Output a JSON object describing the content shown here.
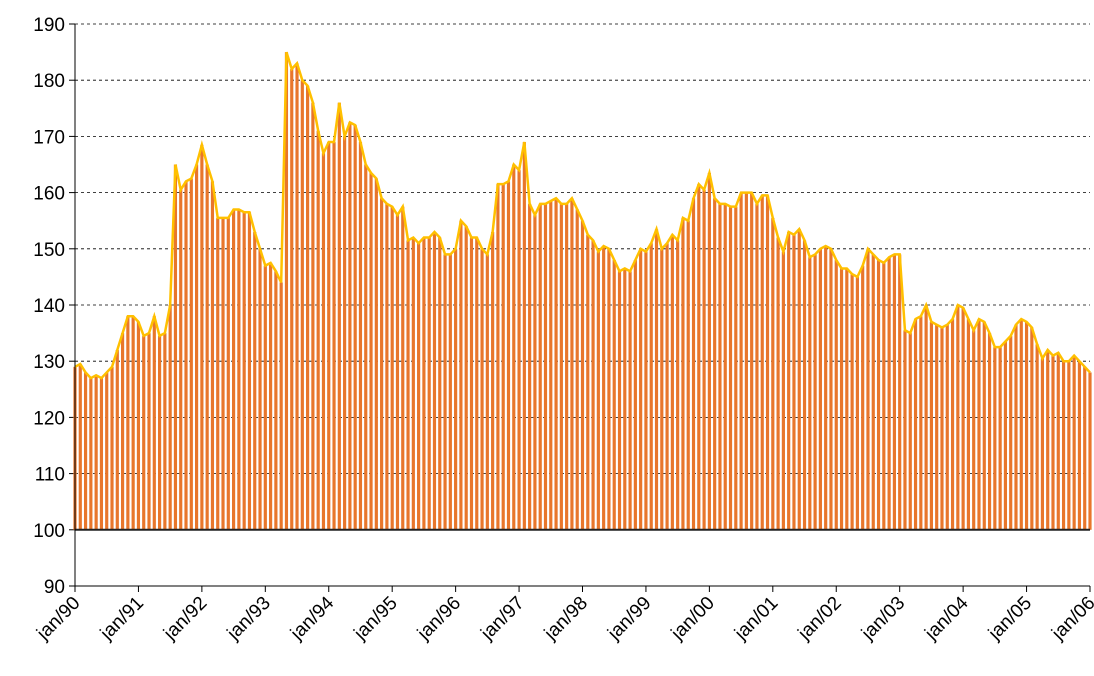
{
  "chart_data": {
    "type": "bar-line",
    "categories": [
      "jan/90",
      null,
      null,
      null,
      null,
      null,
      null,
      null,
      null,
      null,
      null,
      null,
      "jan/91",
      null,
      null,
      null,
      null,
      null,
      null,
      null,
      null,
      null,
      null,
      null,
      "jan/92",
      null,
      null,
      null,
      null,
      null,
      null,
      null,
      null,
      null,
      null,
      null,
      "jan/93",
      null,
      null,
      null,
      null,
      null,
      null,
      null,
      null,
      null,
      null,
      null,
      "jan/94",
      null,
      null,
      null,
      null,
      null,
      null,
      null,
      null,
      null,
      null,
      null,
      "jan/95",
      null,
      null,
      null,
      null,
      null,
      null,
      null,
      null,
      null,
      null,
      null,
      "jan/96",
      null,
      null,
      null,
      null,
      null,
      null,
      null,
      null,
      null,
      null,
      null,
      "jan/97",
      null,
      null,
      null,
      null,
      null,
      null,
      null,
      null,
      null,
      null,
      null,
      "jan/98",
      null,
      null,
      null,
      null,
      null,
      null,
      null,
      null,
      null,
      null,
      null,
      "jan/99",
      null,
      null,
      null,
      null,
      null,
      null,
      null,
      null,
      null,
      null,
      null,
      "jan/00",
      null,
      null,
      null,
      null,
      null,
      null,
      null,
      null,
      null,
      null,
      null,
      "jan/01",
      null,
      null,
      null,
      null,
      null,
      null,
      null,
      null,
      null,
      null,
      null,
      "jan/02",
      null,
      null,
      null,
      null,
      null,
      null,
      null,
      null,
      null,
      null,
      null,
      "jan/03",
      null,
      null,
      null,
      null,
      null,
      null,
      null,
      null,
      null,
      null,
      null,
      "jan/04",
      null,
      null,
      null,
      null,
      null,
      null,
      null,
      null,
      null,
      null,
      null,
      "jan/05",
      null,
      null,
      null,
      null,
      null,
      null,
      null,
      null,
      null,
      null,
      null,
      "jan/06"
    ],
    "values": [
      129,
      129.5,
      128,
      127,
      127.5,
      127,
      128,
      129,
      132,
      135,
      138,
      138,
      137,
      134.5,
      135,
      138,
      134.5,
      135,
      140,
      165,
      160.5,
      162,
      162.5,
      165,
      168.5,
      165,
      162,
      155.5,
      155.5,
      155.5,
      157,
      157,
      156.5,
      156.5,
      153,
      150,
      147,
      147.5,
      146,
      144,
      185,
      182,
      183,
      180,
      179,
      176,
      171,
      167,
      169,
      169,
      176,
      170,
      172.5,
      172,
      169,
      165,
      163.5,
      162.5,
      159,
      158,
      157.5,
      156,
      157.5,
      151.5,
      152,
      151,
      152,
      152,
      153,
      152,
      149,
      149,
      150,
      155,
      154,
      152,
      152,
      150,
      149,
      153,
      161.5,
      161.5,
      162,
      165,
      164,
      169,
      158,
      156,
      158,
      158,
      158.5,
      159,
      158,
      158,
      159,
      157,
      155,
      152.5,
      151.5,
      149.5,
      150.5,
      150,
      148,
      146,
      146.5,
      146,
      148,
      150,
      149.5,
      151,
      153.5,
      150,
      151,
      152.5,
      151.5,
      155.5,
      155,
      159,
      161.5,
      160.5,
      163.5,
      159,
      158,
      158,
      157.5,
      157.5,
      160,
      160,
      160,
      158,
      159.5,
      159.5,
      155.5,
      152,
      149.5,
      153,
      152.5,
      153.5,
      151.5,
      148.5,
      149,
      150,
      150.5,
      150,
      148,
      146.5,
      146.5,
      145.5,
      145,
      147,
      150,
      149,
      148,
      147.5,
      148.5,
      149,
      149,
      135.5,
      135,
      137.5,
      138,
      140,
      137,
      136.5,
      136,
      136.5,
      137.5,
      140,
      139.5,
      137.5,
      135.5,
      137.5,
      137,
      135,
      132.5,
      132.5,
      133.5,
      134.5,
      136.5,
      137.5,
      137,
      136,
      133,
      130.5,
      132,
      131,
      131.5,
      130,
      130,
      131,
      130,
      129,
      128
    ],
    "bar_color": "#e8762b",
    "line_color": "#ffc000",
    "baseline": 100,
    "ylim": [
      90,
      190
    ],
    "yticks": [
      90,
      100,
      110,
      120,
      130,
      140,
      150,
      160,
      170,
      180,
      190
    ],
    "grid": true
  }
}
